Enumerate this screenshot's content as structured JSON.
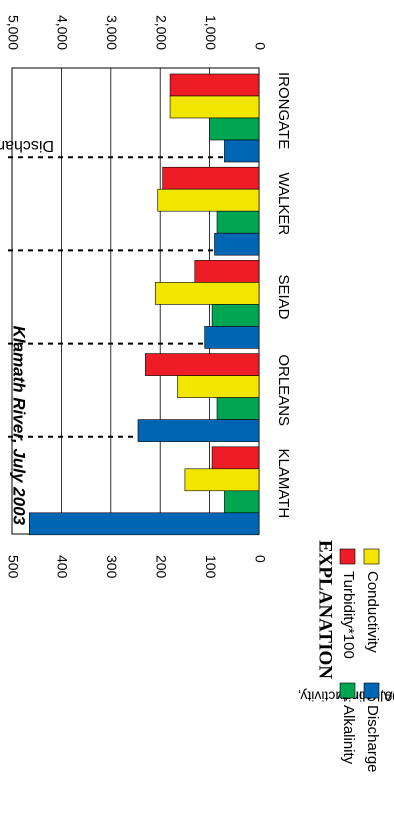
{
  "chart_data": {
    "type": "bar",
    "orientation": "horizontal",
    "title": "Klamath River, July 2003",
    "categories": [
      "IRONGATE",
      "WALKER",
      "SEIAD",
      "ORLEANS",
      "KLAMATH"
    ],
    "left_axis": {
      "label": "Turbidity*100, Conductivity, Alkalinity",
      "ticks": [
        "0",
        "100",
        "200",
        "300",
        "400",
        "500"
      ],
      "range": [
        0,
        500
      ]
    },
    "right_axis": {
      "label": "Discharge",
      "ticks": [
        "0",
        "1,000",
        "2,000",
        "3,000",
        "4,000",
        "5,000"
      ],
      "range": [
        0,
        5000
      ]
    },
    "series": [
      {
        "name": "Turbidity*100",
        "axis": "left",
        "color": "#ee1c24",
        "values": [
          180,
          195,
          130,
          230,
          95
        ]
      },
      {
        "name": "Conductivity",
        "axis": "left",
        "color": "#f2e600",
        "values": [
          180,
          205,
          210,
          165,
          150
        ]
      },
      {
        "name": "Alkalinity",
        "axis": "left",
        "color": "#00a651",
        "values": [
          100,
          85,
          95,
          85,
          70
        ]
      },
      {
        "name": "Discharge",
        "axis": "right",
        "color": "#0066b3",
        "values": [
          700,
          900,
          1100,
          2450,
          4650
        ]
      }
    ],
    "legend": {
      "title": "EXPLANATION",
      "position": "bottom"
    },
    "grid": true
  }
}
